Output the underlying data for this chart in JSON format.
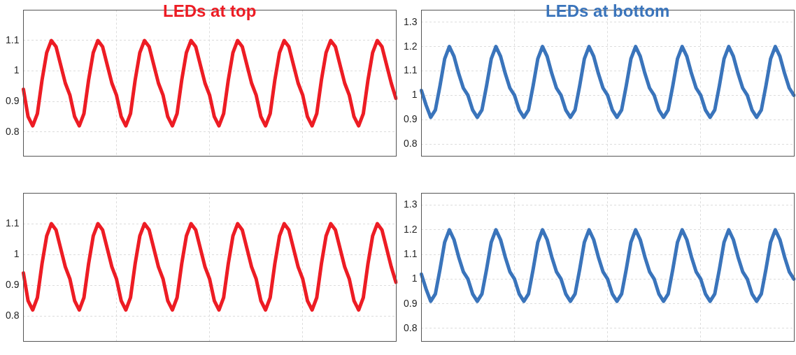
{
  "chart_data": [
    {
      "type": "line",
      "title": "LEDs at top",
      "ylim": [
        0.72,
        1.2
      ],
      "yticks": [
        0.8,
        0.9,
        1,
        1.1
      ],
      "grid": true,
      "categories": [
        null,
        null,
        null,
        null,
        null,
        null,
        null,
        null,
        null,
        null,
        null,
        null,
        null,
        null,
        null,
        null,
        null,
        null,
        null,
        null,
        null,
        null,
        null,
        null,
        null,
        null,
        null,
        null,
        null,
        null,
        null,
        null,
        null,
        null,
        null,
        null,
        null,
        null,
        null,
        null,
        null,
        null,
        null,
        null,
        null,
        null,
        null,
        null,
        null,
        null,
        null,
        null,
        null,
        null,
        null,
        null,
        null,
        null,
        null,
        null,
        null,
        null,
        null,
        null,
        null,
        null,
        null,
        null,
        null,
        null,
        null,
        null,
        null,
        null,
        null,
        null,
        null,
        null,
        null,
        null,
        null
      ],
      "series": [
        {
          "color": "#ed1c24",
          "values": [
            0.94,
            0.85,
            0.82,
            0.86,
            0.97,
            1.06,
            1.1,
            1.08,
            1.02,
            0.96,
            0.92,
            0.85,
            0.82,
            0.86,
            0.97,
            1.06,
            1.1,
            1.08,
            1.02,
            0.96,
            0.92,
            0.85,
            0.82,
            0.86,
            0.97,
            1.06,
            1.1,
            1.08,
            1.02,
            0.96,
            0.92,
            0.85,
            0.82,
            0.86,
            0.97,
            1.06,
            1.1,
            1.08,
            1.02,
            0.96,
            0.92,
            0.85,
            0.82,
            0.86,
            0.97,
            1.06,
            1.1,
            1.08,
            1.02,
            0.96,
            0.92,
            0.85,
            0.82,
            0.86,
            0.97,
            1.06,
            1.1,
            1.08,
            1.02,
            0.96,
            0.92,
            0.85,
            0.82,
            0.86,
            0.97,
            1.06,
            1.1,
            1.08,
            1.02,
            0.96,
            0.92,
            0.85,
            0.82,
            0.86,
            0.97,
            1.06,
            1.1,
            1.08,
            1.02,
            0.96,
            0.91
          ]
        }
      ]
    },
    {
      "type": "line",
      "title": "LEDs at bottom",
      "ylim": [
        0.75,
        1.35
      ],
      "yticks": [
        0.8,
        0.9,
        1,
        1.1,
        1.2,
        1.3
      ],
      "grid": true,
      "categories": [
        null,
        null,
        null,
        null,
        null,
        null,
        null,
        null,
        null,
        null,
        null,
        null,
        null,
        null,
        null,
        null,
        null,
        null,
        null,
        null,
        null,
        null,
        null,
        null,
        null,
        null,
        null,
        null,
        null,
        null,
        null,
        null,
        null,
        null,
        null,
        null,
        null,
        null,
        null,
        null,
        null,
        null,
        null,
        null,
        null,
        null,
        null,
        null,
        null,
        null,
        null,
        null,
        null,
        null,
        null,
        null,
        null,
        null,
        null,
        null,
        null,
        null,
        null,
        null,
        null,
        null,
        null,
        null,
        null,
        null,
        null,
        null,
        null,
        null,
        null,
        null,
        null,
        null,
        null,
        null,
        null
      ],
      "series": [
        {
          "color": "#3a74bb",
          "values": [
            1.02,
            0.96,
            0.91,
            0.94,
            1.04,
            1.15,
            1.2,
            1.16,
            1.09,
            1.03,
            1.0,
            0.94,
            0.91,
            0.94,
            1.04,
            1.15,
            1.2,
            1.16,
            1.09,
            1.03,
            1.0,
            0.94,
            0.91,
            0.94,
            1.04,
            1.15,
            1.2,
            1.16,
            1.09,
            1.03,
            1.0,
            0.94,
            0.91,
            0.94,
            1.04,
            1.15,
            1.2,
            1.16,
            1.09,
            1.03,
            1.0,
            0.94,
            0.91,
            0.94,
            1.04,
            1.15,
            1.2,
            1.16,
            1.09,
            1.03,
            1.0,
            0.94,
            0.91,
            0.94,
            1.04,
            1.15,
            1.2,
            1.16,
            1.09,
            1.03,
            1.0,
            0.94,
            0.91,
            0.94,
            1.04,
            1.15,
            1.2,
            1.16,
            1.09,
            1.03,
            1.0,
            0.94,
            0.91,
            0.94,
            1.04,
            1.15,
            1.2,
            1.16,
            1.09,
            1.03,
            1.0
          ]
        }
      ]
    },
    {
      "type": "line",
      "ylim": [
        0.72,
        1.2
      ],
      "yticks": [
        0.8,
        0.9,
        1,
        1.1
      ],
      "grid": true,
      "categories": [
        null,
        null,
        null,
        null,
        null,
        null,
        null,
        null,
        null,
        null,
        null,
        null,
        null,
        null,
        null,
        null,
        null,
        null,
        null,
        null,
        null,
        null,
        null,
        null,
        null,
        null,
        null,
        null,
        null,
        null,
        null,
        null,
        null,
        null,
        null,
        null,
        null,
        null,
        null,
        null,
        null,
        null,
        null,
        null,
        null,
        null,
        null,
        null,
        null,
        null,
        null,
        null,
        null,
        null,
        null,
        null,
        null,
        null,
        null,
        null,
        null,
        null,
        null,
        null,
        null,
        null,
        null,
        null,
        null,
        null,
        null,
        null,
        null,
        null,
        null,
        null,
        null,
        null,
        null,
        null,
        null
      ],
      "series": [
        {
          "color": "#ed1c24",
          "values": [
            0.94,
            0.85,
            0.82,
            0.86,
            0.97,
            1.06,
            1.1,
            1.08,
            1.02,
            0.96,
            0.92,
            0.85,
            0.82,
            0.86,
            0.97,
            1.06,
            1.1,
            1.08,
            1.02,
            0.96,
            0.92,
            0.85,
            0.82,
            0.86,
            0.97,
            1.06,
            1.1,
            1.08,
            1.02,
            0.96,
            0.92,
            0.85,
            0.82,
            0.86,
            0.97,
            1.06,
            1.1,
            1.08,
            1.02,
            0.96,
            0.92,
            0.85,
            0.82,
            0.86,
            0.97,
            1.06,
            1.1,
            1.08,
            1.02,
            0.96,
            0.92,
            0.85,
            0.82,
            0.86,
            0.97,
            1.06,
            1.1,
            1.08,
            1.02,
            0.96,
            0.92,
            0.85,
            0.82,
            0.86,
            0.97,
            1.06,
            1.1,
            1.08,
            1.02,
            0.96,
            0.92,
            0.85,
            0.82,
            0.86,
            0.97,
            1.06,
            1.1,
            1.08,
            1.02,
            0.96,
            0.91
          ]
        }
      ]
    },
    {
      "type": "line",
      "ylim": [
        0.75,
        1.35
      ],
      "yticks": [
        0.8,
        0.9,
        1,
        1.1,
        1.2,
        1.3
      ],
      "grid": true,
      "categories": [
        null,
        null,
        null,
        null,
        null,
        null,
        null,
        null,
        null,
        null,
        null,
        null,
        null,
        null,
        null,
        null,
        null,
        null,
        null,
        null,
        null,
        null,
        null,
        null,
        null,
        null,
        null,
        null,
        null,
        null,
        null,
        null,
        null,
        null,
        null,
        null,
        null,
        null,
        null,
        null,
        null,
        null,
        null,
        null,
        null,
        null,
        null,
        null,
        null,
        null,
        null,
        null,
        null,
        null,
        null,
        null,
        null,
        null,
        null,
        null,
        null,
        null,
        null,
        null,
        null,
        null,
        null,
        null,
        null,
        null,
        null,
        null,
        null,
        null,
        null,
        null,
        null,
        null,
        null,
        null,
        null
      ],
      "series": [
        {
          "color": "#3a74bb",
          "values": [
            1.02,
            0.96,
            0.91,
            0.94,
            1.04,
            1.15,
            1.2,
            1.16,
            1.09,
            1.03,
            1.0,
            0.94,
            0.91,
            0.94,
            1.04,
            1.15,
            1.2,
            1.16,
            1.09,
            1.03,
            1.0,
            0.94,
            0.91,
            0.94,
            1.04,
            1.15,
            1.2,
            1.16,
            1.09,
            1.03,
            1.0,
            0.94,
            0.91,
            0.94,
            1.04,
            1.15,
            1.2,
            1.16,
            1.09,
            1.03,
            1.0,
            0.94,
            0.91,
            0.94,
            1.04,
            1.15,
            1.2,
            1.16,
            1.09,
            1.03,
            1.0,
            0.94,
            0.91,
            0.94,
            1.04,
            1.15,
            1.2,
            1.16,
            1.09,
            1.03,
            1.0,
            0.94,
            0.91,
            0.94,
            1.04,
            1.15,
            1.2,
            1.16,
            1.09,
            1.03,
            1.0,
            0.94,
            0.91,
            0.94,
            1.04,
            1.15,
            1.2,
            1.16,
            1.09,
            1.03,
            1.0
          ]
        }
      ]
    }
  ]
}
